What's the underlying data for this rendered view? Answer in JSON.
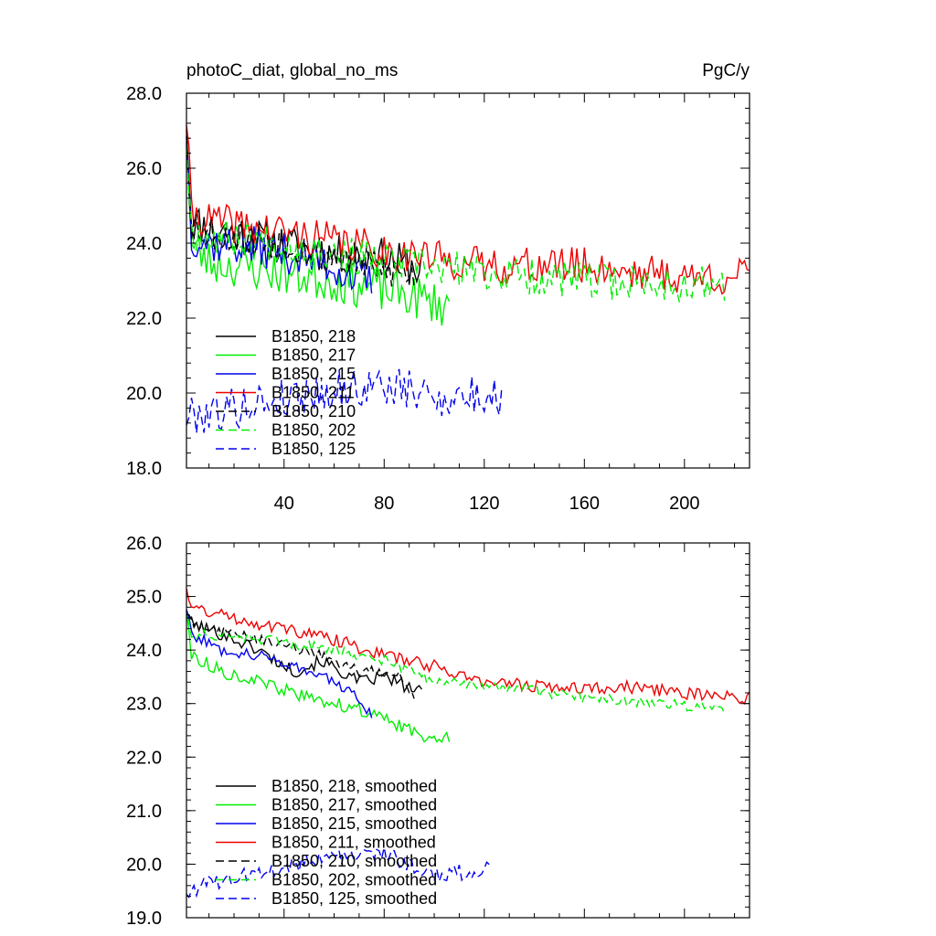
{
  "chart_data": [
    {
      "type": "line",
      "title": "photoC_diat, global_no_ms",
      "units": "PgC/y",
      "xlabel": "",
      "ylabel": "",
      "xlim": [
        1,
        226
      ],
      "ylim": [
        18.0,
        28.0
      ],
      "x_ticks": [
        40,
        80,
        120,
        160,
        200
      ],
      "x_tick_labels": [
        "40",
        "80",
        "120",
        "160",
        "200"
      ],
      "y_ticks": [
        18,
        20,
        22,
        24,
        26,
        28
      ],
      "y_tick_labels": [
        "18.0",
        "20.0",
        "22.0",
        "24.0",
        "26.0",
        "28.0"
      ],
      "legend_position": "lower-left",
      "series": [
        {
          "name": "B1850, 218",
          "color": "#000000",
          "dash": "solid",
          "years": 95,
          "anchors": [
            [
              1,
              27.3
            ],
            [
              3,
              24.6
            ],
            [
              10,
              24.4
            ],
            [
              30,
              24.1
            ],
            [
              60,
              23.7
            ],
            [
              80,
              23.6
            ],
            [
              95,
              23.3
            ]
          ],
          "noise": 0.55,
          "seed": 11
        },
        {
          "name": "B1850, 217",
          "color": "#00ee00",
          "dash": "solid",
          "years": 106,
          "anchors": [
            [
              1,
              27.0
            ],
            [
              3,
              23.9
            ],
            [
              10,
              23.5
            ],
            [
              30,
              23.3
            ],
            [
              60,
              23.0
            ],
            [
              90,
              22.6
            ],
            [
              106,
              22.3
            ]
          ],
          "noise": 0.6,
          "seed": 23
        },
        {
          "name": "B1850, 215",
          "color": "#0000ee",
          "dash": "solid",
          "years": 75,
          "anchors": [
            [
              1,
              26.9
            ],
            [
              3,
              24.2
            ],
            [
              10,
              24.0
            ],
            [
              30,
              23.9
            ],
            [
              55,
              23.5
            ],
            [
              75,
              22.9
            ]
          ],
          "noise": 0.55,
          "seed": 37
        },
        {
          "name": "B1850, 211",
          "color": "#ee0000",
          "dash": "solid",
          "years": 226,
          "anchors": [
            [
              1,
              27.4
            ],
            [
              3,
              24.8
            ],
            [
              10,
              24.6
            ],
            [
              40,
              24.3
            ],
            [
              80,
              23.8
            ],
            [
              120,
              23.4
            ],
            [
              160,
              23.4
            ],
            [
              200,
              23.1
            ],
            [
              226,
              23.1
            ]
          ],
          "noise": 0.5,
          "seed": 41
        },
        {
          "name": "B1850, 210",
          "color": "#000000",
          "dash": "dashed",
          "years": 92,
          "anchors": [
            [
              1,
              27.1
            ],
            [
              3,
              24.5
            ],
            [
              10,
              24.3
            ],
            [
              40,
              24.0
            ],
            [
              70,
              23.5
            ],
            [
              92,
              23.1
            ]
          ],
          "noise": 0.5,
          "seed": 53
        },
        {
          "name": "B1850, 202",
          "color": "#00ee00",
          "dash": "dashed",
          "years": 216,
          "anchors": [
            [
              1,
              26.8
            ],
            [
              3,
              24.3
            ],
            [
              10,
              24.2
            ],
            [
              40,
              24.0
            ],
            [
              80,
              23.5
            ],
            [
              120,
              23.2
            ],
            [
              160,
              23.0
            ],
            [
              200,
              22.9
            ],
            [
              216,
              22.9
            ]
          ],
          "noise": 0.5,
          "seed": 67
        },
        {
          "name": "B1850, 125",
          "color": "#0000ee",
          "dash": "dashed",
          "years": 127,
          "anchors": [
            [
              1,
              19.4
            ],
            [
              20,
              19.6
            ],
            [
              50,
              20.0
            ],
            [
              80,
              20.2
            ],
            [
              100,
              19.9
            ],
            [
              127,
              19.9
            ]
          ],
          "noise": 0.55,
          "seed": 79
        }
      ]
    },
    {
      "type": "line",
      "title": "",
      "xlabel": "",
      "ylabel": "",
      "xlim": [
        1,
        226
      ],
      "ylim": [
        19.0,
        26.0
      ],
      "x_ticks": [
        40,
        80,
        120,
        160,
        200
      ],
      "y_ticks": [
        19,
        20,
        21,
        22,
        23,
        24,
        25,
        26
      ],
      "y_tick_labels": [
        "19.0",
        "20.0",
        "21.0",
        "22.0",
        "23.0",
        "24.0",
        "25.0",
        "26.0"
      ],
      "legend_position": "lower-left",
      "series": [
        {
          "name": "B1850, 218, smoothed",
          "color": "#000000",
          "dash": "solid",
          "years": 95,
          "anchors": [
            [
              1,
              24.7
            ],
            [
              3,
              24.5
            ],
            [
              15,
              24.3
            ],
            [
              30,
              24.0
            ],
            [
              40,
              23.7
            ],
            [
              45,
              23.6
            ],
            [
              55,
              23.8
            ],
            [
              70,
              23.4
            ],
            [
              80,
              23.5
            ],
            [
              95,
              23.2
            ]
          ],
          "noise": 0.12,
          "seed": 101
        },
        {
          "name": "B1850, 217, smoothed",
          "color": "#00ee00",
          "dash": "solid",
          "years": 106,
          "anchors": [
            [
              1,
              24.8
            ],
            [
              3,
              23.9
            ],
            [
              15,
              23.6
            ],
            [
              30,
              23.4
            ],
            [
              50,
              23.1
            ],
            [
              70,
              22.9
            ],
            [
              85,
              22.6
            ],
            [
              95,
              22.4
            ],
            [
              106,
              22.4
            ]
          ],
          "noise": 0.12,
          "seed": 113
        },
        {
          "name": "B1850, 215, smoothed",
          "color": "#0000ee",
          "dash": "solid",
          "years": 75,
          "anchors": [
            [
              1,
              24.8
            ],
            [
              3,
              24.3
            ],
            [
              15,
              24.0
            ],
            [
              30,
              23.9
            ],
            [
              45,
              23.7
            ],
            [
              60,
              23.4
            ],
            [
              67,
              23.2
            ],
            [
              75,
              22.8
            ]
          ],
          "noise": 0.1,
          "seed": 127
        },
        {
          "name": "B1850, 211, smoothed",
          "color": "#ee0000",
          "dash": "solid",
          "years": 226,
          "anchors": [
            [
              1,
              25.2
            ],
            [
              3,
              24.8
            ],
            [
              20,
              24.6
            ],
            [
              40,
              24.4
            ],
            [
              60,
              24.2
            ],
            [
              80,
              23.9
            ],
            [
              100,
              23.7
            ],
            [
              120,
              23.4
            ],
            [
              150,
              23.3
            ],
            [
              180,
              23.3
            ],
            [
              200,
              23.2
            ],
            [
              226,
              23.1
            ]
          ],
          "noise": 0.12,
          "seed": 131
        },
        {
          "name": "B1850, 210, smoothed",
          "color": "#000000",
          "dash": "dashed",
          "years": 92,
          "anchors": [
            [
              1,
              24.7
            ],
            [
              3,
              24.5
            ],
            [
              20,
              24.3
            ],
            [
              40,
              24.1
            ],
            [
              55,
              23.9
            ],
            [
              70,
              23.6
            ],
            [
              85,
              23.6
            ],
            [
              92,
              23.1
            ]
          ],
          "noise": 0.1,
          "seed": 149
        },
        {
          "name": "B1850, 202, smoothed",
          "color": "#00ee00",
          "dash": "dashed",
          "years": 216,
          "anchors": [
            [
              1,
              24.6
            ],
            [
              3,
              24.3
            ],
            [
              30,
              24.2
            ],
            [
              60,
              24.0
            ],
            [
              80,
              23.8
            ],
            [
              100,
              23.4
            ],
            [
              130,
              23.3
            ],
            [
              160,
              23.1
            ],
            [
              190,
              23.0
            ],
            [
              216,
              22.9
            ]
          ],
          "noise": 0.1,
          "seed": 151
        },
        {
          "name": "B1850, 125, smoothed",
          "color": "#0000ee",
          "dash": "dashed",
          "years": 122,
          "anchors": [
            [
              1,
              19.5
            ],
            [
              15,
              19.7
            ],
            [
              35,
              19.9
            ],
            [
              55,
              20.1
            ],
            [
              80,
              20.2
            ],
            [
              100,
              19.8
            ],
            [
              122,
              19.9
            ]
          ],
          "noise": 0.15,
          "seed": 163
        }
      ]
    }
  ]
}
